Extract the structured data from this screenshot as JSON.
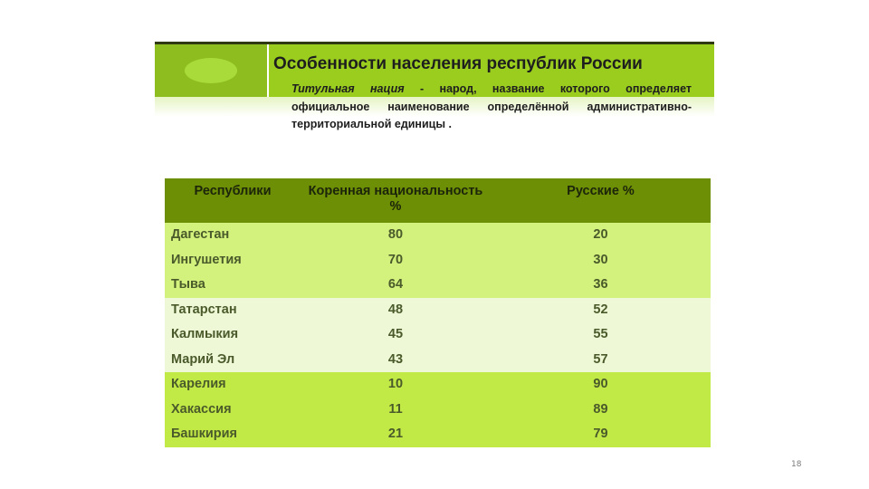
{
  "slide": {
    "title": "Особенности населения республик России",
    "definition_term": "Титульная нация",
    "definition_text": " - народ, название которого определяет официальное наименование определённой административно-территориальной единицы .",
    "page_number": "18"
  },
  "table": {
    "headers": [
      "Республики",
      "Коренная национальность %",
      "Русские %"
    ],
    "rows": [
      [
        "Дагестан",
        "80",
        "20"
      ],
      [
        "Ингушетия",
        "70",
        "30"
      ],
      [
        "Тыва",
        "64",
        "36"
      ],
      [
        "Татарстан",
        "48",
        "52"
      ],
      [
        "Калмыкия",
        "45",
        "55"
      ],
      [
        "Марий Эл",
        "43",
        "57"
      ],
      [
        "Карелия",
        "10",
        "90"
      ],
      [
        "Хакассия",
        "11",
        "89"
      ],
      [
        "Башкирия",
        "21",
        "79"
      ]
    ]
  },
  "colors": {
    "header_band": "#9acd1e",
    "table_header": "#6d8f06",
    "group1_row": "#d2f17d",
    "group2_row": "#eef8d6",
    "group3_row": "#c2ea46"
  }
}
